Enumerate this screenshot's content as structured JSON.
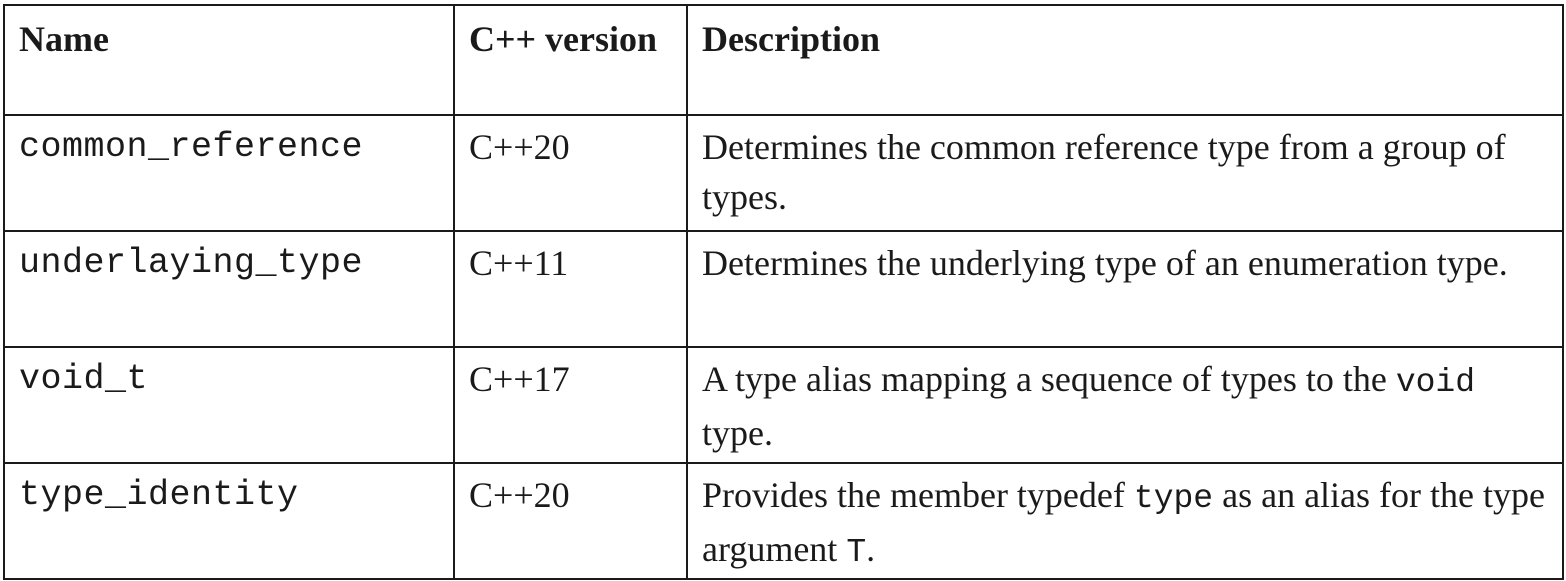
{
  "table": {
    "headers": {
      "name": "Name",
      "version": "C++ version",
      "description": "Description"
    },
    "rows": [
      {
        "name": "common_reference",
        "version": "C++20",
        "description": {
          "text1": "Determines the common reference type from a group of types."
        }
      },
      {
        "name": "underlaying_type",
        "version": "C++11",
        "description": {
          "text1": "Determines the underlying type of an enumeration type."
        }
      },
      {
        "name": "void_t",
        "version": "C++17",
        "description": {
          "text1": "A type alias mapping a sequence of types to the ",
          "code1": "void",
          "text2": " type."
        }
      },
      {
        "name": "type_identity",
        "version": "C++20",
        "description": {
          "text1": "Provides the member typedef ",
          "code1": "type",
          "text2": " as an alias for the type argument ",
          "code2": "T",
          "text3": "."
        }
      }
    ]
  }
}
